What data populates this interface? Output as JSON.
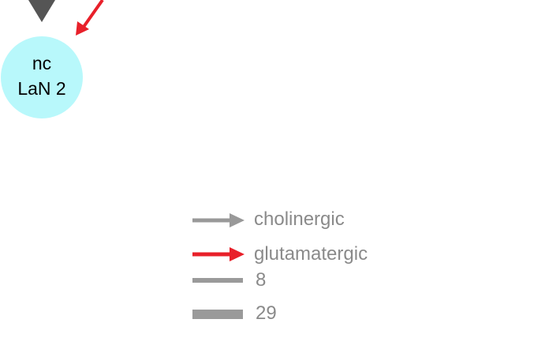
{
  "nodes": [
    {
      "id": "nc-lan-2",
      "label_line1": "nc",
      "label_line2": "LaN 2",
      "fill": "#b8f8fb"
    }
  ],
  "edges": [
    {
      "type": "cholinergic",
      "color": "#555555",
      "direction": "incoming-from-top"
    },
    {
      "type": "glutamatergic",
      "color": "#e8202a",
      "direction": "incoming-from-top-right"
    }
  ],
  "legend": {
    "cholinergic_label": "cholinergic",
    "glutamatergic_label": "glutamatergic",
    "weight_small_label": "8",
    "weight_large_label": "29",
    "cholinergic_color": "#999999",
    "glutamatergic_color": "#e8202a",
    "weight_color": "#9a9a9a",
    "weight_small": 8,
    "weight_large": 29
  }
}
